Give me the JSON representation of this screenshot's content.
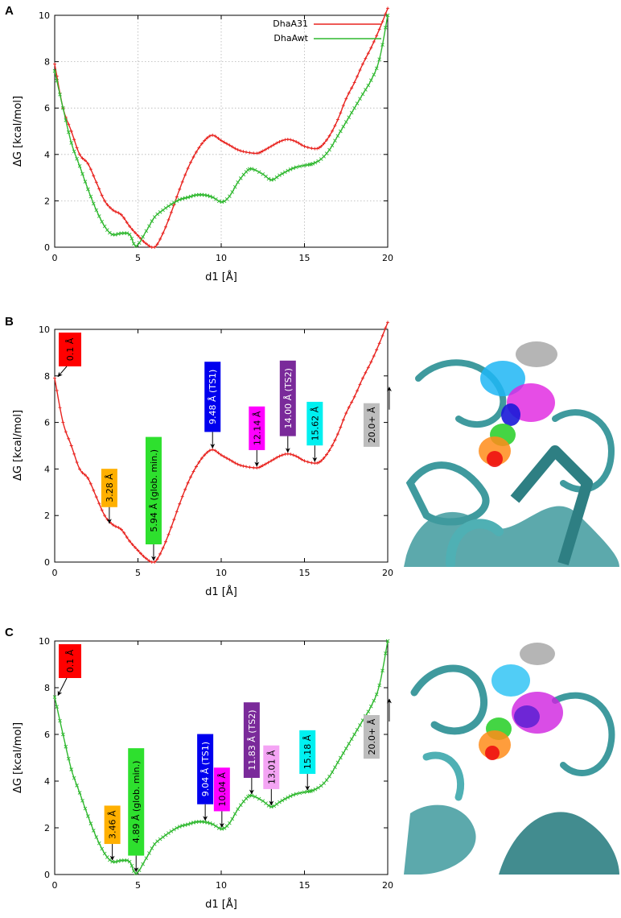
{
  "panels": [
    {
      "letter": "A"
    },
    {
      "letter": "B"
    },
    {
      "letter": "C"
    }
  ],
  "chart_data": [
    {
      "type": "line",
      "panel": "A",
      "xlabel": "d1 [Å]",
      "ylabel": "ΔG [kcal/mol]",
      "xlim": [
        0,
        20
      ],
      "ylim": [
        0,
        10
      ],
      "xticks": [
        0,
        5,
        10,
        15,
        20
      ],
      "yticks": [
        0,
        2,
        4,
        6,
        8,
        10
      ],
      "grid": true,
      "legend_position": "top-right",
      "series": [
        {
          "name": "DhaA31",
          "color": "#e8231f",
          "marker": "plus",
          "x": [
            0,
            0.5,
            1,
            1.5,
            2,
            2.5,
            3,
            3.5,
            4,
            4.5,
            5,
            5.5,
            6,
            6.5,
            7,
            7.5,
            8,
            8.5,
            9,
            9.48,
            10,
            10.5,
            11,
            11.5,
            12.14,
            12.5,
            13,
            13.5,
            14,
            14.5,
            15,
            15.62,
            16,
            16.5,
            17,
            17.5,
            18,
            18.5,
            19,
            19.5,
            20
          ],
          "y": [
            7.9,
            6.0,
            5.0,
            4.0,
            3.6,
            2.8,
            2.0,
            1.6,
            1.4,
            0.9,
            0.5,
            0.15,
            0,
            0.6,
            1.5,
            2.5,
            3.4,
            4.1,
            4.6,
            4.83,
            4.6,
            4.4,
            4.2,
            4.1,
            4.05,
            4.15,
            4.35,
            4.55,
            4.65,
            4.55,
            4.35,
            4.25,
            4.35,
            4.8,
            5.5,
            6.4,
            7.1,
            7.9,
            8.6,
            9.4,
            10.3
          ]
        },
        {
          "name": "DhaAwt",
          "color": "#2fb82f",
          "marker": "cross",
          "x": [
            0,
            0.5,
            1,
            1.5,
            2,
            2.5,
            3,
            3.46,
            4,
            4.5,
            4.89,
            5.5,
            6,
            6.5,
            7,
            7.5,
            8,
            8.5,
            9,
            9.5,
            10.04,
            10.5,
            11,
            11.5,
            11.83,
            12.5,
            13.01,
            13.5,
            14,
            14.5,
            15.18,
            15.5,
            16,
            16.5,
            17,
            17.5,
            18,
            18.5,
            19,
            19.5,
            20
          ],
          "y": [
            7.6,
            6.0,
            4.5,
            3.5,
            2.5,
            1.6,
            0.9,
            0.55,
            0.6,
            0.55,
            0.05,
            0.7,
            1.3,
            1.6,
            1.85,
            2.05,
            2.15,
            2.25,
            2.25,
            2.15,
            1.95,
            2.2,
            2.8,
            3.25,
            3.38,
            3.15,
            2.9,
            3.1,
            3.3,
            3.45,
            3.55,
            3.6,
            3.8,
            4.2,
            4.8,
            5.4,
            6.0,
            6.6,
            7.2,
            8.1,
            10.0
          ]
        }
      ]
    },
    {
      "type": "line",
      "panel": "B",
      "xlabel": "d1 [Å]",
      "ylabel": "ΔG [kcal/mol]",
      "xlim": [
        0,
        20
      ],
      "ylim": [
        0,
        10
      ],
      "xticks": [
        0,
        5,
        10,
        15,
        20
      ],
      "yticks": [
        0,
        2,
        4,
        6,
        8,
        10
      ],
      "grid": false,
      "series_ref": "DhaA31",
      "annotations": [
        {
          "text": "0.1 Å",
          "x": 0.1,
          "y": 7.9,
          "color": "#ff0000",
          "text_color": "#000000"
        },
        {
          "text": "3.28 Å",
          "x": 3.28,
          "y": 1.6,
          "color": "#ffb000",
          "text_color": "#000000"
        },
        {
          "text": "5.94 Å (glob. min.)",
          "x": 5.94,
          "y": 0,
          "color": "#2ee02e",
          "text_color": "#000000"
        },
        {
          "text": "9.48 Å (TS1)",
          "x": 9.48,
          "y": 4.83,
          "color": "#0000ee",
          "text_color": "#ffffff"
        },
        {
          "text": "12.14 Å",
          "x": 12.14,
          "y": 4.05,
          "color": "#ff00ff",
          "text_color": "#000000"
        },
        {
          "text": "14.00 Å (TS2)",
          "x": 14.0,
          "y": 4.65,
          "color": "#7a2a9a",
          "text_color": "#ffffff"
        },
        {
          "text": "15.62 Å",
          "x": 15.62,
          "y": 4.25,
          "color": "#00f0f0",
          "text_color": "#000000"
        },
        {
          "text": "20.0+ Å",
          "x": 19.9,
          "y": 7.0,
          "color": "#bdbdbd",
          "text_color": "#000000"
        }
      ]
    },
    {
      "type": "line",
      "panel": "C",
      "xlabel": "d1 [Å]",
      "ylabel": "ΔG [kcal/mol]",
      "xlim": [
        0,
        20
      ],
      "ylim": [
        0,
        10
      ],
      "xticks": [
        0,
        5,
        10,
        15,
        20
      ],
      "yticks": [
        0,
        2,
        4,
        6,
        8,
        10
      ],
      "grid": false,
      "series_ref": "DhaAwt",
      "annotations": [
        {
          "text": "0.1 Å",
          "x": 0.1,
          "y": 7.6,
          "color": "#ff0000",
          "text_color": "#000000"
        },
        {
          "text": "3.46 Å",
          "x": 3.46,
          "y": 0.55,
          "color": "#ffb000",
          "text_color": "#000000"
        },
        {
          "text": "4.89 Å (glob. min.)",
          "x": 4.89,
          "y": 0.05,
          "color": "#2ee02e",
          "text_color": "#000000"
        },
        {
          "text": "9.04 Å (TS1)",
          "x": 9.04,
          "y": 2.25,
          "color": "#0000ee",
          "text_color": "#ffffff"
        },
        {
          "text": "10.04 Å",
          "x": 10.04,
          "y": 1.95,
          "color": "#ff00ff",
          "text_color": "#000000"
        },
        {
          "text": "11.83 Å (TS2)",
          "x": 11.83,
          "y": 3.38,
          "color": "#7a2a9a",
          "text_color": "#ffffff"
        },
        {
          "text": "13.01 Å",
          "x": 13.01,
          "y": 2.9,
          "color": "#f4a4f4",
          "text_color": "#000000"
        },
        {
          "text": "15.18 Å",
          "x": 15.18,
          "y": 3.55,
          "color": "#00f0f0",
          "text_color": "#000000"
        },
        {
          "text": "20.0+ Å",
          "x": 19.9,
          "y": 7.0,
          "color": "#bdbdbd",
          "text_color": "#000000"
        }
      ]
    }
  ],
  "images": [
    {
      "panel": "B",
      "subject": "protein-structure-cartoon-with-ligand-trajectories",
      "ribbon_color": "#3f9a9e"
    },
    {
      "panel": "C",
      "subject": "protein-structure-cartoon-with-ligand-trajectories",
      "ribbon_color": "#3f9a9e"
    }
  ]
}
